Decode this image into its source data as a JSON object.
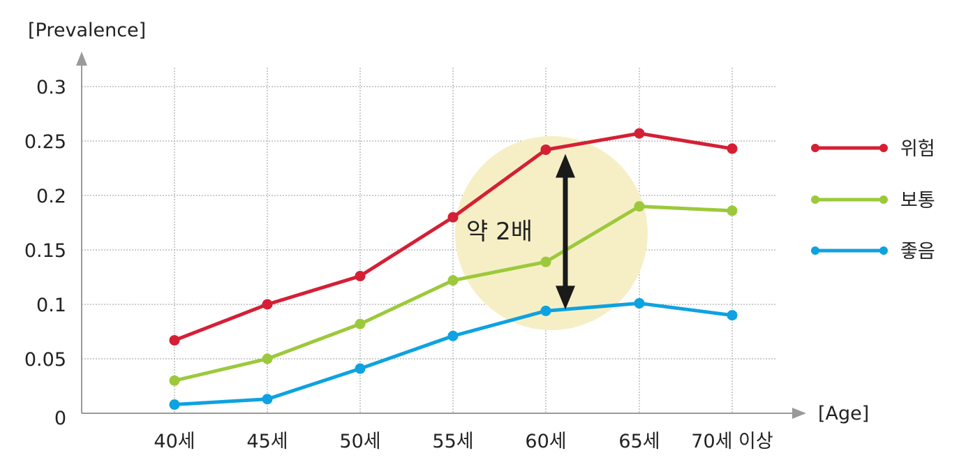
{
  "chart_data": {
    "type": "line",
    "ylabel": "[Prevalence]",
    "xlabel": "[Age]",
    "categories": [
      "40세",
      "45세",
      "50세",
      "55세",
      "60세",
      "65세",
      "70세 이상"
    ],
    "y_ticks": [
      "0",
      "0.05",
      "0.1",
      "0.15",
      "0.2",
      "0.25",
      "0.3"
    ],
    "ylim": [
      0,
      0.3
    ],
    "grid": true,
    "legend_position": "right",
    "series": [
      {
        "name": "위험",
        "color": "#d51f35",
        "values": [
          0.067,
          0.1,
          0.126,
          0.18,
          0.242,
          0.257,
          0.243
        ]
      },
      {
        "name": "보통",
        "color": "#9cc93b",
        "values": [
          0.03,
          0.05,
          0.082,
          0.122,
          0.139,
          0.19,
          0.186
        ]
      },
      {
        "name": "좋음",
        "color": "#0ea2e0",
        "values": [
          0.008,
          0.013,
          0.041,
          0.071,
          0.094,
          0.101,
          0.09
        ]
      }
    ],
    "annotation": {
      "text": "약 2배",
      "category": "60세",
      "from_series": "위험",
      "to_series": "좋음",
      "highlight_color": "#f6efc6",
      "arrow_color": "#1a1a1a"
    }
  }
}
